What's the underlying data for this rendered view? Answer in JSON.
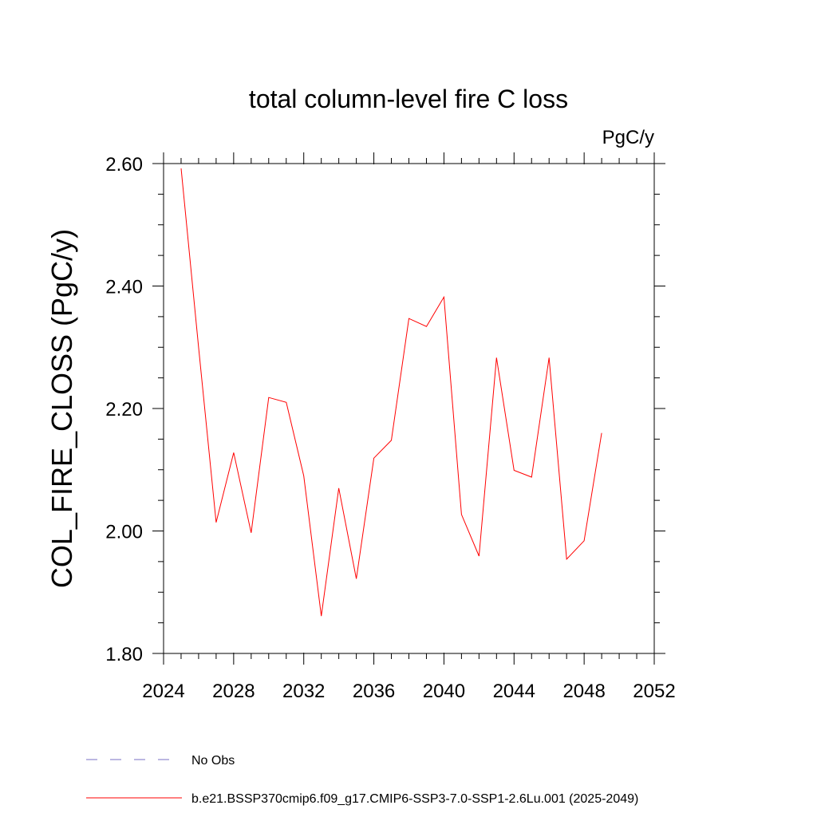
{
  "chart_data": {
    "type": "line",
    "title": "total column-level fire C loss",
    "units": "PgC/y",
    "ylabel": "COL_FIRE_CLOSS  (PgC/y)",
    "xlabel": "",
    "xlim": [
      2024,
      2052
    ],
    "ylim": [
      1.8,
      2.6
    ],
    "xticks": [
      2024,
      2028,
      2032,
      2036,
      2040,
      2044,
      2048,
      2052
    ],
    "xtick_labels": [
      "2024",
      "2028",
      "2032",
      "2036",
      "2040",
      "2044",
      "2048",
      "2052"
    ],
    "yticks": [
      1.8,
      2.0,
      2.2,
      2.4,
      2.6
    ],
    "ytick_labels": [
      "1.80",
      "2.00",
      "2.20",
      "2.40",
      "2.60"
    ],
    "grid": false,
    "legend_position": "bottom",
    "series": [
      {
        "name": "b.e21.BSSP370cmip6.f09_g17.CMIP6-SSP3-7.0-SSP1-2.6Lu.001 (2025-2049)",
        "color": "#ff0000",
        "style": "solid",
        "x": [
          2025,
          2026,
          2027,
          2028,
          2029,
          2030,
          2031,
          2032,
          2033,
          2034,
          2035,
          2036,
          2037,
          2038,
          2039,
          2040,
          2041,
          2042,
          2043,
          2044,
          2045,
          2046,
          2047,
          2048,
          2049
        ],
        "values": [
          2.592,
          2.3,
          2.014,
          2.128,
          1.997,
          2.218,
          2.21,
          2.09,
          1.861,
          2.07,
          1.922,
          2.119,
          2.148,
          2.347,
          2.334,
          2.382,
          2.027,
          1.959,
          2.283,
          2.099,
          2.088,
          2.283,
          1.954,
          1.984,
          2.16
        ]
      }
    ],
    "legend": [
      {
        "label": "No Obs",
        "color": "#7a6fc4",
        "style": "dashed"
      },
      {
        "label": "b.e21.BSSP370cmip6.f09_g17.CMIP6-SSP3-7.0-SSP1-2.6Lu.001 (2025-2049)",
        "color": "#ff0000",
        "style": "solid"
      }
    ]
  }
}
